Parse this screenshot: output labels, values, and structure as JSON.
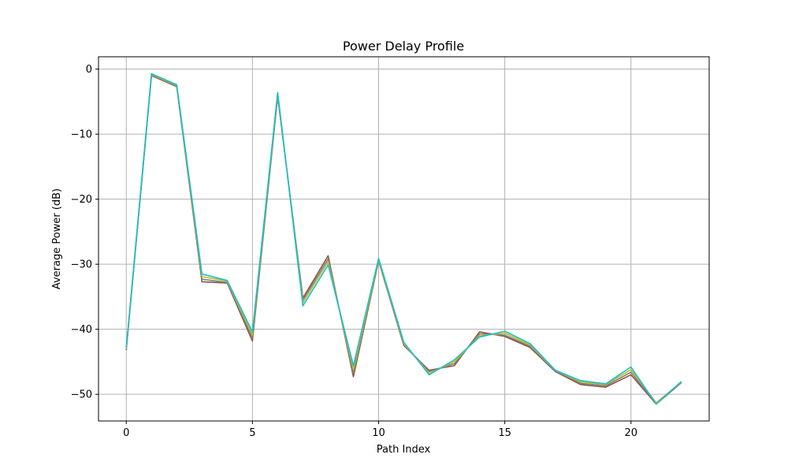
{
  "chart_data": {
    "type": "line",
    "title": "Power Delay Profile",
    "xlabel": "Path Index",
    "ylabel": "Average Power (dB)",
    "xlim": [
      -1.1,
      23.1
    ],
    "ylim": [
      -54.1,
      1.9
    ],
    "xticks": [
      0,
      5,
      10,
      15,
      20
    ],
    "yticks": [
      0,
      -10,
      -20,
      -30,
      -40,
      -50
    ],
    "xtick_labels": [
      "0",
      "5",
      "10",
      "15",
      "20"
    ],
    "ytick_labels": [
      "0",
      "−10",
      "−20",
      "−30",
      "−40",
      "−50"
    ],
    "grid": true,
    "legend": "none",
    "x": [
      0,
      1,
      2,
      3,
      4,
      5,
      6,
      7,
      8,
      9,
      10,
      11,
      12,
      13,
      14,
      15,
      16,
      17,
      18,
      19,
      20,
      21,
      22
    ],
    "series": [
      {
        "color": "#8c564b",
        "values": [
          -43.2,
          -1.0,
          -2.7,
          -32.7,
          -32.9,
          -41.8,
          -4.2,
          -35.2,
          -28.7,
          -47.3,
          -29.5,
          -42.5,
          -46.3,
          -45.6,
          -40.4,
          -41.1,
          -42.8,
          -46.5,
          -48.5,
          -48.9,
          -47.0,
          -51.5,
          -48.2
        ]
      },
      {
        "color": "#7f7f7f",
        "values": [
          -43.1,
          -0.9,
          -2.6,
          -32.3,
          -32.8,
          -41.3,
          -4.0,
          -35.5,
          -29.2,
          -46.8,
          -29.4,
          -42.3,
          -46.5,
          -45.3,
          -40.7,
          -40.9,
          -42.6,
          -46.4,
          -48.3,
          -48.7,
          -46.6,
          -51.4,
          -48.2
        ]
      },
      {
        "color": "#bcbd22",
        "values": [
          -43.0,
          -0.8,
          -2.5,
          -31.9,
          -32.6,
          -40.9,
          -3.8,
          -35.9,
          -29.6,
          -46.2,
          -29.3,
          -42.2,
          -46.8,
          -45.0,
          -41.0,
          -40.6,
          -42.4,
          -46.3,
          -48.1,
          -48.5,
          -46.2,
          -51.3,
          -48.1
        ]
      },
      {
        "color": "#17becf",
        "values": [
          -42.9,
          -0.7,
          -2.4,
          -31.5,
          -32.5,
          -40.4,
          -3.6,
          -36.4,
          -30.1,
          -45.6,
          -29.1,
          -42.0,
          -47.0,
          -44.7,
          -41.2,
          -40.3,
          -42.2,
          -46.3,
          -47.9,
          -48.4,
          -45.8,
          -51.5,
          -48.0
        ]
      }
    ]
  }
}
